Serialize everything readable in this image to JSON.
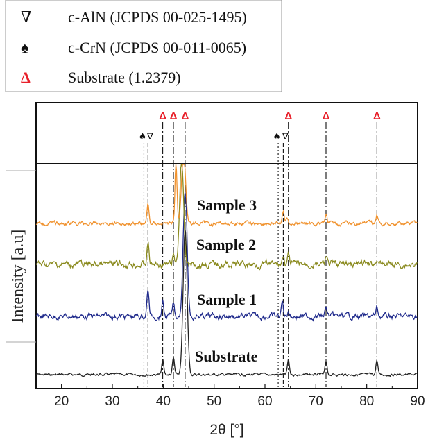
{
  "legend": [
    {
      "symbol": "∇",
      "symbol_color": "#111111",
      "label": "c-AlN (JCPDS 00-025-1495)"
    },
    {
      "symbol": "♠",
      "symbol_color": "#111111",
      "label": "c-CrN (JCPDS 00-011-0065)"
    },
    {
      "symbol": "Δ",
      "symbol_color": "#e8202a",
      "label": "Substrate (1.2379)"
    }
  ],
  "chart_data": {
    "type": "line",
    "xlabel": "2θ [°]",
    "ylabel": "Intensity [a.u]",
    "xlim": [
      15,
      90
    ],
    "xticks": [
      20,
      30,
      40,
      50,
      60,
      70,
      80,
      90
    ],
    "grid": false,
    "legend_position": "top",
    "reference_lines": [
      {
        "x": 36.2,
        "marker": "♠",
        "style": "dotted"
      },
      {
        "x": 37.0,
        "marker": "∇",
        "style": "dashed"
      },
      {
        "x": 39.9,
        "marker": "Δ",
        "style": "dash-dot"
      },
      {
        "x": 42.0,
        "marker": "Δ",
        "style": "dash-dot"
      },
      {
        "x": 44.3,
        "marker": "Δ",
        "style": "dash-dot"
      },
      {
        "x": 62.6,
        "marker": "♠",
        "style": "dotted"
      },
      {
        "x": 63.6,
        "marker": "∇",
        "style": "dashed"
      },
      {
        "x": 64.6,
        "marker": "Δ",
        "style": "dash-dot"
      },
      {
        "x": 72.0,
        "marker": "Δ",
        "style": "dash-dot"
      },
      {
        "x": 82.0,
        "marker": "Δ",
        "style": "dash-dot"
      }
    ],
    "series": [
      {
        "name": "Substrate",
        "color": "#222222",
        "peaks": [
          {
            "x": 39.9,
            "h": 0.07
          },
          {
            "x": 42.0,
            "h": 0.08
          },
          {
            "x": 44.3,
            "h": 0.7
          },
          {
            "x": 64.6,
            "h": 0.07
          },
          {
            "x": 72.0,
            "h": 0.06
          },
          {
            "x": 82.0,
            "h": 0.07
          }
        ]
      },
      {
        "name": "Sample 1",
        "color": "#1f2a8c",
        "peaks": [
          {
            "x": 37.0,
            "h": 0.13
          },
          {
            "x": 39.9,
            "h": 0.07
          },
          {
            "x": 42.0,
            "h": 0.06
          },
          {
            "x": 44.3,
            "h": 0.6
          },
          {
            "x": 63.4,
            "h": 0.07
          },
          {
            "x": 64.6,
            "h": 0.03
          },
          {
            "x": 72.0,
            "h": 0.04
          },
          {
            "x": 82.0,
            "h": 0.04
          }
        ]
      },
      {
        "name": "Sample 2",
        "color": "#8a8a1e",
        "peaks": [
          {
            "x": 37.0,
            "h": 0.1
          },
          {
            "x": 42.0,
            "h": 0.04
          },
          {
            "x": 43.6,
            "h": 0.5
          },
          {
            "x": 63.6,
            "h": 0.04
          },
          {
            "x": 64.6,
            "h": 0.04
          },
          {
            "x": 72.0,
            "h": 0.03
          },
          {
            "x": 82.0,
            "h": 0.03
          }
        ]
      },
      {
        "name": "Sample 3",
        "color": "#f0922e",
        "peaks": [
          {
            "x": 37.0,
            "h": 0.09
          },
          {
            "x": 42.5,
            "h": 0.3
          },
          {
            "x": 44.0,
            "h": 0.35
          },
          {
            "x": 63.6,
            "h": 0.05
          },
          {
            "x": 64.3,
            "h": 0.03
          },
          {
            "x": 72.0,
            "h": 0.04
          },
          {
            "x": 82.0,
            "h": 0.04
          }
        ]
      }
    ]
  }
}
